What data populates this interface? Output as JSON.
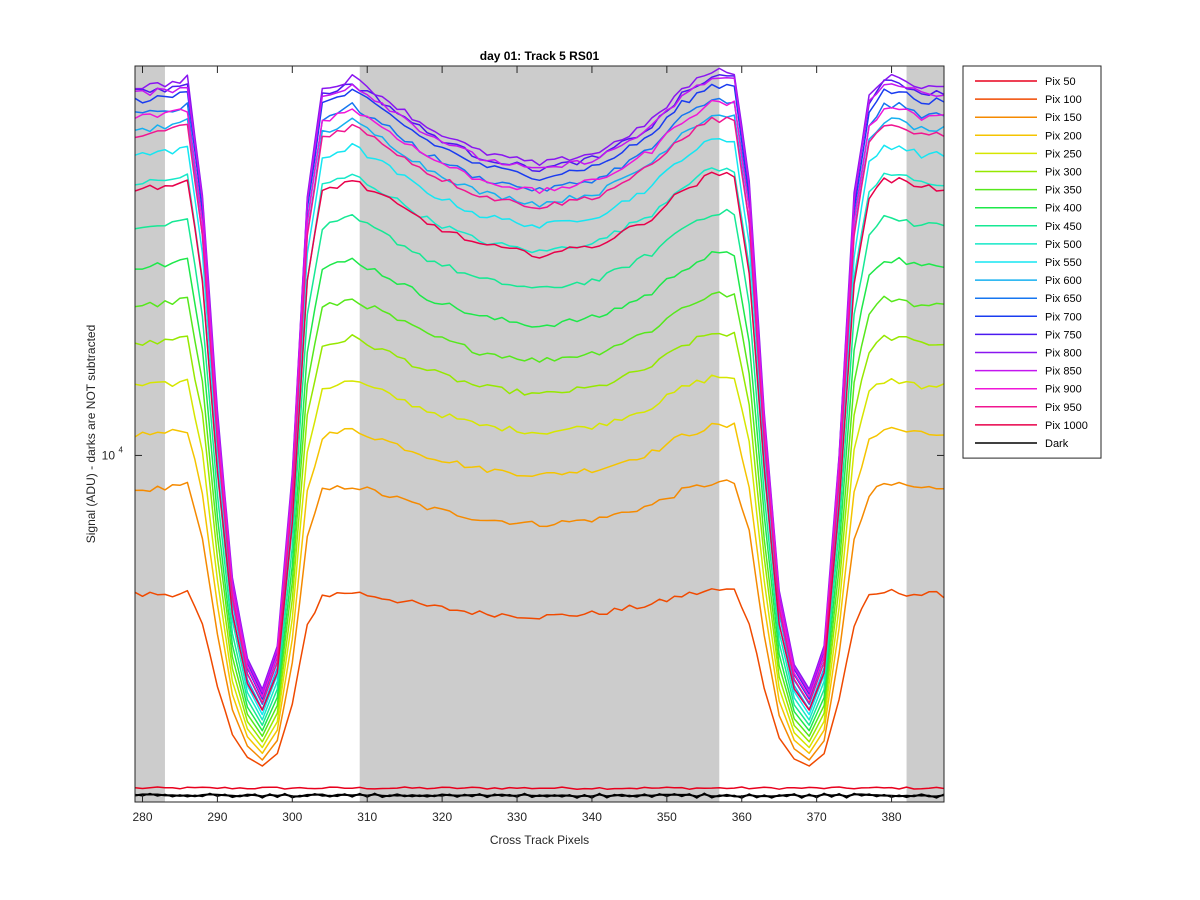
{
  "chart_data": {
    "type": "line",
    "title": "day 01: Track 5  RS01",
    "xlabel": "Cross Track Pixels",
    "ylabel": "Signal (ADU) - darks are NOT subtracted",
    "y_scale": "log",
    "xlim": [
      279,
      387
    ],
    "ylim": [
      4000,
      28000
    ],
    "x_ticks": [
      280,
      290,
      300,
      310,
      320,
      330,
      340,
      350,
      360,
      370,
      380
    ],
    "y_ticks": [
      {
        "value": 10000,
        "label": "10",
        "exponent": "4"
      }
    ],
    "grid": false,
    "legend_placement": "outside-right",
    "shaded_x_bands": [
      [
        279,
        283
      ],
      [
        309,
        357
      ],
      [
        382,
        387
      ]
    ],
    "profile_knots": {
      "x": [
        279,
        283.5,
        286,
        288,
        290,
        292,
        294,
        296,
        298,
        300,
        302,
        304,
        308,
        312,
        318,
        325,
        333,
        341,
        348,
        352,
        356,
        359,
        361,
        363,
        365,
        367,
        369,
        371,
        373,
        375,
        377,
        379,
        381,
        384,
        387
      ],
      "shape": [
        0.975,
        0.98,
        0.99,
        0.8,
        0.45,
        0.18,
        0.05,
        0.0,
        0.07,
        0.35,
        0.8,
        0.97,
        0.99,
        0.96,
        0.91,
        0.87,
        0.85,
        0.87,
        0.92,
        0.97,
        1.0,
        1.0,
        0.82,
        0.45,
        0.16,
        0.04,
        0.0,
        0.07,
        0.38,
        0.8,
        0.96,
        0.99,
        0.99,
        0.975,
        0.975
      ]
    },
    "series": [
      {
        "name": "Pix 50",
        "color": "#e8001d",
        "flat": 4150
      },
      {
        "name": "Pix 100",
        "color": "#f04a00",
        "min": 4400,
        "max": 7000
      },
      {
        "name": "Pix 150",
        "color": "#f58a00",
        "min": 4470,
        "max": 9300
      },
      {
        "name": "Pix 200",
        "color": "#f5c400",
        "min": 4550,
        "max": 10800
      },
      {
        "name": "Pix 250",
        "color": "#d6e600",
        "min": 4620,
        "max": 12300
      },
      {
        "name": "Pix 300",
        "color": "#96e800",
        "min": 4690,
        "max": 13800
      },
      {
        "name": "Pix 350",
        "color": "#56e81c",
        "min": 4760,
        "max": 15300
      },
      {
        "name": "Pix 400",
        "color": "#1ee84a",
        "min": 4830,
        "max": 17000
      },
      {
        "name": "Pix 450",
        "color": "#16e894",
        "min": 4900,
        "max": 19000
      },
      {
        "name": "Pix 500",
        "color": "#16e8c8",
        "min": 4970,
        "max": 21300
      },
      {
        "name": "Pix 550",
        "color": "#16e6f2",
        "min": 5040,
        "max": 23000
      },
      {
        "name": "Pix 600",
        "color": "#16b0f0",
        "min": 5110,
        "max": 24600
      },
      {
        "name": "Pix 650",
        "color": "#1676f0",
        "min": 5180,
        "max": 25600
      },
      {
        "name": "Pix 700",
        "color": "#1a3cf0",
        "min": 5250,
        "max": 26600
      },
      {
        "name": "Pix 750",
        "color": "#4a1af0",
        "min": 5320,
        "max": 27200
      },
      {
        "name": "Pix 800",
        "color": "#8a16f0",
        "min": 5390,
        "max": 27600
      },
      {
        "name": "Pix 850",
        "color": "#c416f0",
        "min": 5350,
        "max": 27100
      },
      {
        "name": "Pix 900",
        "color": "#f016d8",
        "min": 5280,
        "max": 25400
      },
      {
        "name": "Pix 950",
        "color": "#f01690",
        "min": 5200,
        "max": 24300
      },
      {
        "name": "Pix 1000",
        "color": "#e8004a",
        "min": 5100,
        "max": 21000
      },
      {
        "name": "Dark",
        "color": "#000000",
        "flat": 4070
      }
    ]
  }
}
